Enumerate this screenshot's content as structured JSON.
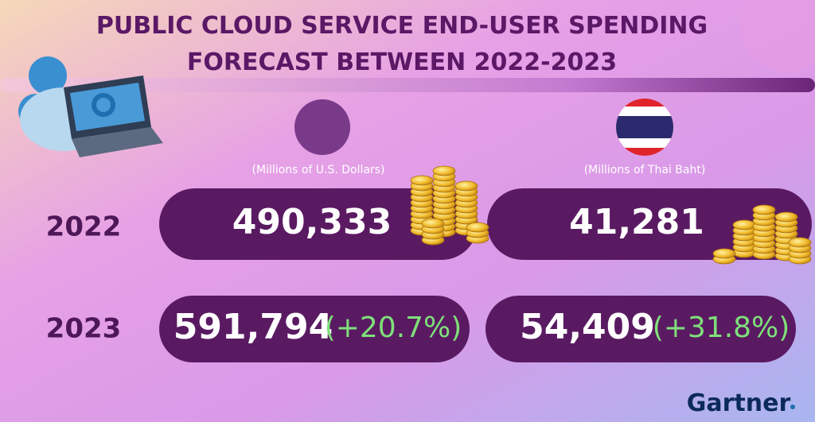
{
  "header": {
    "title_line1": "PUBLIC CLOUD SERVICE END-USER SPENDING",
    "title_line2": "FORECAST BETWEEN 2022-2023"
  },
  "columns": [
    {
      "unit": "(Millions of U.S. Dollars)"
    },
    {
      "unit": "(Millions of Thai Baht)"
    }
  ],
  "rows": [
    {
      "year": "2022",
      "cells": [
        {
          "value": "490,333"
        },
        {
          "value": "41,281"
        }
      ]
    },
    {
      "year": "2023",
      "cells": [
        {
          "value": "591,794",
          "change": "(+20.7%)"
        },
        {
          "value": "54,409",
          "change": "(+31.8%)"
        }
      ]
    }
  ],
  "footer": {
    "brand": "Gartner"
  }
}
